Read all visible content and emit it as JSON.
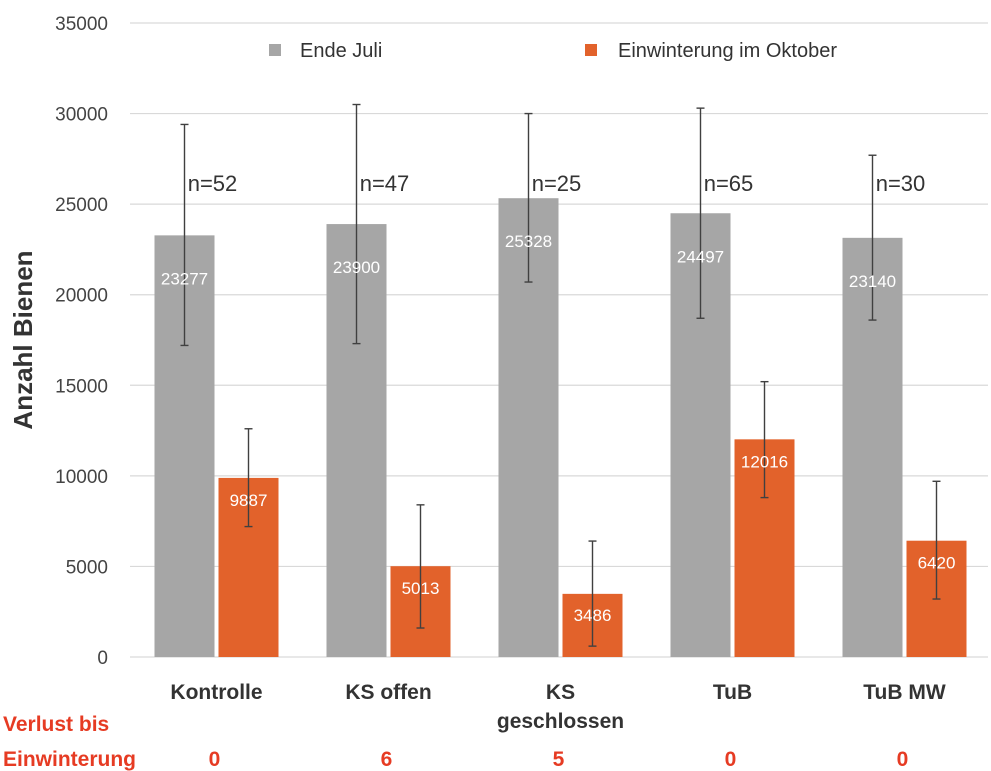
{
  "chart_data": {
    "type": "bar",
    "title": "",
    "xlabel": "",
    "ylabel": "Anzahl Bienen",
    "ylim": [
      0,
      35000
    ],
    "yticks": [
      "0",
      "5000",
      "10000",
      "15000",
      "20000",
      "25000",
      "30000",
      "35000"
    ],
    "grid": true,
    "legend_position": "top",
    "categories": [
      [
        "Kontrolle"
      ],
      [
        "KS offen"
      ],
      [
        "KS",
        "geschlossen"
      ],
      [
        "TuB"
      ],
      [
        "TuB MW"
      ]
    ],
    "series": [
      {
        "name": "Ende Juli",
        "color": "#a6a6a6",
        "values": [
          23277,
          23900,
          25328,
          24497,
          23140
        ],
        "err_low": [
          17200,
          17300,
          20700,
          18700,
          18600
        ],
        "err_high": [
          29400,
          30500,
          30000,
          30300,
          27700
        ]
      },
      {
        "name": "Einwinterung im Oktober",
        "color": "#e2622b",
        "values": [
          9887,
          5013,
          3486,
          12016,
          6420
        ],
        "err_low": [
          7200,
          1600,
          600,
          8800,
          3200
        ],
        "err_high": [
          12600,
          8400,
          6400,
          15200,
          9700
        ]
      }
    ],
    "sample_sizes": [
      "n=52",
      "n=47",
      "n=25",
      "n=65",
      "n=30"
    ],
    "loss_label": [
      "Verlust bis",
      "Einwinterung"
    ],
    "loss_values": [
      "0",
      "6",
      "5",
      "0",
      "0"
    ]
  }
}
